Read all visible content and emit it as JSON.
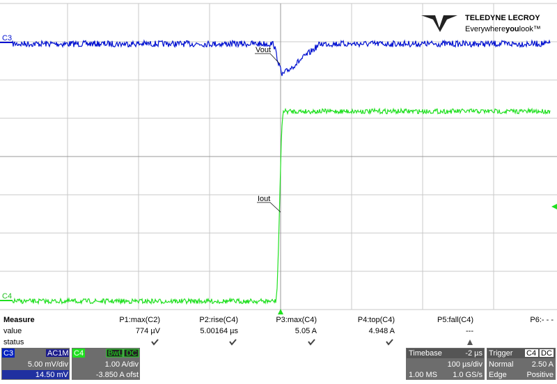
{
  "logo": {
    "brand": "TELEDYNE LECROY",
    "tagline_a": "Everywhere",
    "tagline_b": "you",
    "tagline_c": "look™"
  },
  "traces": {
    "c3": "C3",
    "c4": "C4",
    "vout": "Vout",
    "iout": "Iout"
  },
  "measure": {
    "title": "Measure",
    "row_labels": [
      "value",
      "status"
    ],
    "params": [
      {
        "name": "P1:max(C2)",
        "value": "774 µV"
      },
      {
        "name": "P2:rise(C4)",
        "value": "5.00164 µs"
      },
      {
        "name": "P3:max(C4)",
        "value": "5.05 A"
      },
      {
        "name": "P4:top(C4)",
        "value": "4.948 A"
      },
      {
        "name": "P5:fall(C4)",
        "value": "---"
      },
      {
        "name": "P6:- - -"
      }
    ]
  },
  "channels": [
    {
      "label": "C3",
      "coupling": "AC1M",
      "scale": "5.00 mV/div",
      "offset": "14.50 mV"
    },
    {
      "label": "C4",
      "bw": "BwL",
      "coupling": "DC",
      "scale": "1.00 A/div",
      "offset": "-3.850 A ofst"
    }
  ],
  "timebase": {
    "title": "Timebase",
    "delay": "-2 µs",
    "scale": "100 µs/div",
    "samples": "1.00 MS",
    "rate": "1.0 GS/s"
  },
  "trigger": {
    "title": "Trigger",
    "source": "C4",
    "coupling": "DC",
    "mode": "Normal",
    "level": "2.50 A",
    "type": "Edge",
    "slope": "Positive"
  }
}
